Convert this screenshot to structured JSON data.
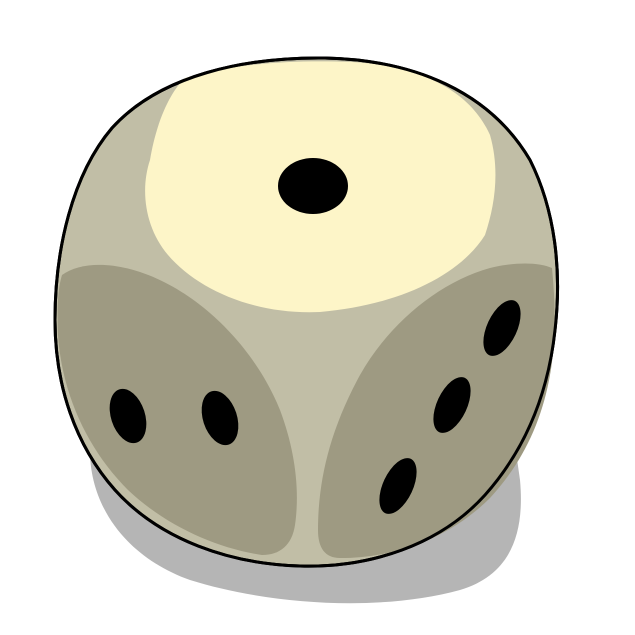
{
  "scene": {
    "subject": "die-icon",
    "faces": {
      "top": {
        "pips": 1
      },
      "left": {
        "pips": 2
      },
      "right": {
        "pips": 3
      }
    },
    "colors": {
      "background": "#ffffff",
      "shadow": "#b5b5b5",
      "body": "#c1bea6",
      "top_face": "#fdf5c8",
      "side_face": "#9e9a82",
      "pip": "#000000",
      "outline": "#000000"
    }
  }
}
